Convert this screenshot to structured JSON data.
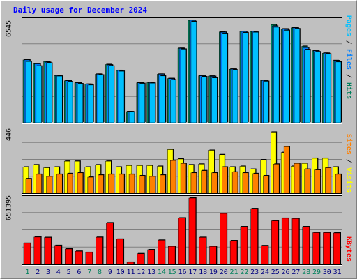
{
  "title": "Daily usage for December 2024",
  "colors": {
    "background": "#c0c0c0",
    "hits": "#00805c",
    "files": "#0080ff",
    "pages": "#00c0ff",
    "visits": "#ffff00",
    "sites": "#ff8000",
    "kbytes": "#ff0000",
    "weekend_day_label": "#00805c",
    "weekday_day_label": "#000080",
    "title": "#0000ff"
  },
  "legend": {
    "panel1": [
      {
        "label": "Hits",
        "color_key": "hits"
      },
      {
        "label": "Files",
        "color_key": "files"
      },
      {
        "label": "Pages",
        "color_key": "pages"
      }
    ],
    "panel2": [
      {
        "label": "Visits",
        "color_key": "visits"
      },
      {
        "label": "Sites",
        "color_key": "sites"
      }
    ],
    "panel3": [
      {
        "label": "KBytes",
        "color_key": "kbytes"
      }
    ]
  },
  "chart_data": {
    "type": "bar",
    "title": "Daily usage for December 2024",
    "days": [
      "1",
      "2",
      "3",
      "4",
      "5",
      "6",
      "7",
      "8",
      "9",
      "10",
      "11",
      "12",
      "13",
      "14",
      "15",
      "16",
      "17",
      "18",
      "19",
      "20",
      "21",
      "22",
      "23",
      "24",
      "25",
      "26",
      "27",
      "28",
      "29",
      "30",
      "31"
    ],
    "weekend_days": [
      "1",
      "7",
      "8",
      "14",
      "15",
      "21",
      "22",
      "28",
      "29"
    ],
    "panels": [
      {
        "name": "hits-files-pages",
        "ymax_label": "6545",
        "ylim": [
          0,
          6545
        ],
        "series": [
          {
            "name": "Hits",
            "values": [
              4010,
              3760,
              3910,
              3010,
              2680,
              2550,
              2460,
              3100,
              3720,
              3340,
              710,
              2550,
              2560,
              3100,
              2820,
              4750,
              6545,
              3000,
              2980,
              5800,
              3420,
              5830,
              5830,
              2700,
              6270,
              5990,
              6060,
              4880,
              4590,
              4440,
              3970
            ]
          },
          {
            "name": "Files",
            "values": [
              4010,
              3760,
              3860,
              3010,
              2680,
              2550,
              2460,
              3100,
              3690,
              3340,
              710,
              2550,
              2560,
              3100,
              2820,
              4750,
              6545,
              3000,
              2960,
              5780,
              3420,
              5830,
              5830,
              2700,
              6170,
              5990,
              6060,
              4800,
              4590,
              4440,
              3960
            ]
          },
          {
            "name": "Pages",
            "values": [
              3910,
              3620,
              3810,
              2980,
              2620,
              2490,
              2410,
              3050,
              3620,
              3290,
              690,
              2510,
              2530,
              2990,
              2740,
              4700,
              6470,
              2940,
              2860,
              5670,
              3370,
              5750,
              5780,
              2650,
              6100,
              5900,
              6000,
              4670,
              4530,
              4390,
              3880
            ]
          }
        ]
      },
      {
        "name": "visits-sites",
        "ymax_label": "446",
        "ylim": [
          0,
          446
        ],
        "series": [
          {
            "name": "Visits",
            "values": [
              180,
              195,
              175,
              180,
              220,
              220,
              180,
              195,
              220,
              180,
              190,
              190,
              190,
              185,
              300,
              235,
              195,
              200,
              295,
              265,
              180,
              185,
              165,
              230,
              420,
              280,
              185,
              205,
              240,
              240,
              180
            ]
          },
          {
            "name": "Sites",
            "values": [
              100,
              130,
              115,
              130,
              135,
              140,
              110,
              125,
              130,
              130,
              130,
              120,
              115,
              125,
              225,
              205,
              140,
              155,
              140,
              180,
              145,
              140,
              135,
              120,
              200,
              320,
              205,
              165,
              160,
              175,
              130
            ]
          }
        ]
      },
      {
        "name": "kbytes",
        "ymax_label": "651395",
        "ylim": [
          0,
          651395
        ],
        "series": [
          {
            "name": "KBytes",
            "values": [
              207000,
              268000,
              264000,
              186000,
              151000,
              129000,
              117000,
              266000,
              409000,
              248000,
              21000,
              105000,
              144000,
              238000,
              177000,
              456000,
              651395,
              265000,
              176000,
              500000,
              233000,
              370000,
              548000,
              184000,
              428000,
              453000,
              450000,
              370000,
              312000,
              312000,
              309000
            ]
          }
        ]
      }
    ]
  }
}
